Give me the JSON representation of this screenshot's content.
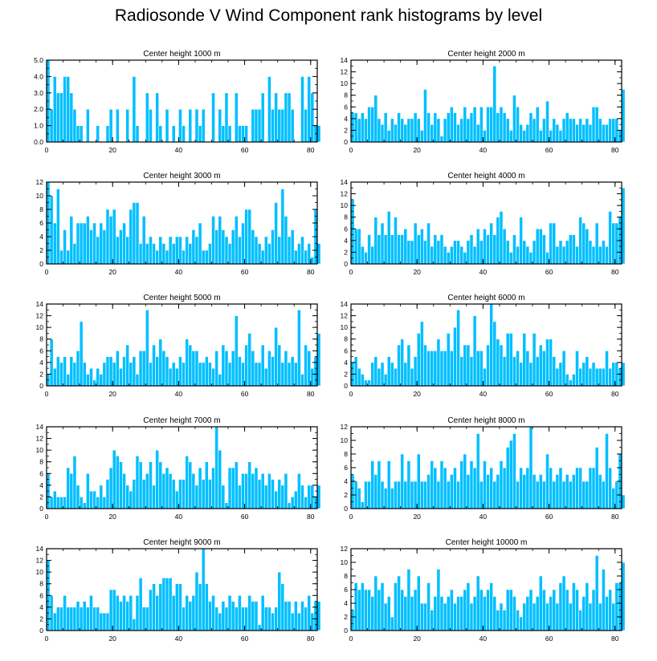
{
  "title": "Radiosonde V Wind Component rank histograms by level",
  "colors": {
    "bar": "#00BFFF",
    "frame": "#000000"
  },
  "chart_data": [
    {
      "type": "bar",
      "title": "Center height 1000 m",
      "x_start": 0,
      "xlim": [
        0,
        82
      ],
      "xticks": [
        0,
        20,
        40,
        60,
        80
      ],
      "ylim": [
        0,
        5
      ],
      "yticks": [
        0,
        1,
        2,
        3,
        4,
        5
      ],
      "yticklabels": [
        "0.0",
        "1.0",
        "2.0",
        "3.0",
        "4.0",
        "5.0"
      ],
      "values": [
        5,
        2,
        4,
        3,
        3,
        4,
        4,
        3,
        2,
        1,
        1,
        0,
        2,
        0,
        0,
        1,
        0,
        0,
        1,
        2,
        0,
        2,
        0,
        0,
        2,
        0,
        4,
        1,
        0,
        0,
        3,
        2,
        0,
        3,
        1,
        0,
        2,
        0,
        1,
        0,
        2,
        1,
        0,
        2,
        0,
        2,
        1,
        2,
        0,
        0,
        3,
        0,
        2,
        1,
        3,
        1,
        0,
        3,
        1,
        1,
        1,
        0,
        2,
        2,
        2,
        3,
        0,
        4,
        2,
        3,
        2,
        2,
        3,
        3,
        2,
        0,
        0,
        4,
        2,
        4,
        3,
        1,
        1
      ]
    },
    {
      "type": "bar",
      "title": "Center height 2000 m",
      "x_start": 0,
      "xlim": [
        0,
        82
      ],
      "xticks": [
        0,
        20,
        40,
        60,
        80
      ],
      "ylim": [
        0,
        14
      ],
      "yticks": [
        0,
        2,
        4,
        6,
        8,
        10,
        12,
        14
      ],
      "yticklabels": [
        "0",
        "2",
        "4",
        "6",
        "8",
        "10",
        "12",
        "14"
      ],
      "values": [
        5,
        5,
        4,
        5,
        4,
        6,
        6,
        8,
        4,
        3,
        5,
        2,
        4,
        3,
        5,
        4,
        3,
        4,
        4,
        5,
        4,
        2,
        9,
        5,
        3,
        5,
        4,
        1,
        4,
        5,
        6,
        5,
        3,
        4,
        6,
        4,
        5,
        6,
        3,
        6,
        2,
        6,
        6,
        13,
        5,
        6,
        5,
        4,
        2,
        8,
        6,
        3,
        2,
        3,
        5,
        4,
        6,
        2,
        4,
        7,
        2,
        4,
        3,
        2,
        4,
        5,
        4,
        4,
        3,
        4,
        3,
        4,
        3,
        6,
        6,
        4,
        3,
        3,
        4,
        4,
        4,
        2,
        9
      ]
    },
    {
      "type": "bar",
      "title": "Center height 3000 m",
      "x_start": 0,
      "xlim": [
        0,
        82
      ],
      "xticks": [
        0,
        20,
        40,
        60,
        80
      ],
      "ylim": [
        0,
        12
      ],
      "yticks": [
        0,
        2,
        4,
        6,
        8,
        10,
        12
      ],
      "yticklabels": [
        "0",
        "2",
        "4",
        "6",
        "8",
        "10",
        "12"
      ],
      "values": [
        12,
        10,
        6,
        11,
        2,
        5,
        2,
        7,
        3,
        6,
        6,
        6,
        7,
        5,
        6,
        4,
        6,
        5,
        8,
        7,
        8,
        4,
        5,
        6,
        4,
        8,
        9,
        9,
        3,
        7,
        3,
        4,
        3,
        2,
        4,
        3,
        2,
        4,
        3,
        4,
        4,
        2,
        4,
        3,
        5,
        4,
        6,
        2,
        2,
        3,
        7,
        5,
        7,
        5,
        4,
        3,
        5,
        7,
        4,
        6,
        8,
        8,
        5,
        4,
        3,
        2,
        4,
        3,
        5,
        9,
        4,
        11,
        7,
        4,
        5,
        2,
        3,
        4,
        2,
        3,
        1,
        8,
        3
      ]
    },
    {
      "type": "bar",
      "title": "Center height 4000 m",
      "x_start": 0,
      "xlim": [
        0,
        82
      ],
      "xticks": [
        0,
        20,
        40,
        60,
        80
      ],
      "ylim": [
        0,
        14
      ],
      "yticks": [
        0,
        2,
        4,
        6,
        8,
        10,
        12,
        14
      ],
      "yticklabels": [
        "0",
        "2",
        "4",
        "6",
        "8",
        "10",
        "12",
        "14"
      ],
      "values": [
        11,
        6,
        6,
        3,
        2,
        5,
        3,
        8,
        5,
        7,
        5,
        9,
        5,
        8,
        5,
        5,
        6,
        4,
        4,
        7,
        5,
        6,
        4,
        7,
        3,
        5,
        4,
        5,
        3,
        2,
        3,
        4,
        4,
        3,
        2,
        4,
        5,
        3,
        6,
        4,
        6,
        5,
        7,
        5,
        8,
        9,
        6,
        4,
        2,
        5,
        3,
        8,
        4,
        3,
        2,
        4,
        6,
        6,
        5,
        2,
        7,
        7,
        3,
        4,
        3,
        4,
        5,
        5,
        3,
        8,
        7,
        6,
        4,
        3,
        7,
        3,
        4,
        3,
        9,
        7,
        7,
        8,
        13
      ]
    },
    {
      "type": "bar",
      "title": "Center height 5000 m",
      "x_start": 0,
      "xlim": [
        0,
        82
      ],
      "xticks": [
        0,
        20,
        40,
        60,
        80
      ],
      "ylim": [
        0,
        14
      ],
      "yticks": [
        0,
        2,
        4,
        6,
        8,
        10,
        12,
        14
      ],
      "yticklabels": [
        "0",
        "2",
        "4",
        "6",
        "8",
        "10",
        "12",
        "14"
      ],
      "values": [
        2,
        8,
        3,
        5,
        4,
        5,
        2,
        5,
        4,
        6,
        11,
        4,
        2,
        3,
        1,
        3,
        2,
        4,
        5,
        5,
        4,
        6,
        3,
        5,
        7,
        4,
        5,
        2,
        6,
        6,
        13,
        4,
        7,
        5,
        8,
        6,
        5,
        3,
        4,
        3,
        5,
        4,
        8,
        7,
        6,
        6,
        4,
        4,
        5,
        4,
        3,
        6,
        2,
        7,
        6,
        4,
        6,
        12,
        5,
        4,
        7,
        9,
        6,
        4,
        4,
        7,
        3,
        6,
        5,
        10,
        7,
        4,
        6,
        4,
        5,
        4,
        13,
        2,
        7,
        6,
        3,
        5,
        9
      ]
    },
    {
      "type": "bar",
      "title": "Center height 6000 m",
      "x_start": 0,
      "xlim": [
        0,
        82
      ],
      "xticks": [
        0,
        20,
        40,
        60,
        80
      ],
      "ylim": [
        0,
        14
      ],
      "yticks": [
        0,
        2,
        4,
        6,
        8,
        10,
        12,
        14
      ],
      "yticklabels": [
        "0",
        "2",
        "4",
        "6",
        "8",
        "10",
        "12",
        "14"
      ],
      "values": [
        4,
        5,
        3,
        2,
        1,
        1,
        4,
        5,
        3,
        4,
        2,
        5,
        4,
        3,
        7,
        8,
        4,
        7,
        3,
        5,
        9,
        11,
        7,
        6,
        6,
        6,
        8,
        6,
        6,
        9,
        6,
        10,
        13,
        5,
        7,
        7,
        5,
        12,
        6,
        6,
        3,
        7,
        14,
        11,
        8,
        7,
        5,
        9,
        9,
        5,
        6,
        4,
        9,
        6,
        4,
        9,
        5,
        7,
        6,
        8,
        8,
        5,
        3,
        4,
        6,
        2,
        1,
        2,
        6,
        3,
        4,
        5,
        3,
        4,
        3,
        3,
        3,
        6,
        3,
        4,
        4,
        3,
        4
      ]
    },
    {
      "type": "bar",
      "title": "Center height 7000 m",
      "x_start": 0,
      "xlim": [
        0,
        82
      ],
      "xticks": [
        0,
        20,
        40,
        60,
        80
      ],
      "ylim": [
        0,
        14
      ],
      "yticks": [
        0,
        2,
        4,
        6,
        8,
        10,
        12,
        14
      ],
      "yticklabels": [
        "0",
        "2",
        "4",
        "6",
        "8",
        "10",
        "12",
        "14"
      ],
      "values": [
        6,
        2,
        3,
        2,
        2,
        2,
        7,
        6,
        9,
        4,
        2,
        1,
        6,
        3,
        3,
        2,
        4,
        2,
        5,
        7,
        10,
        9,
        8,
        6,
        4,
        3,
        5,
        9,
        8,
        5,
        6,
        8,
        4,
        10,
        8,
        6,
        7,
        6,
        5,
        3,
        5,
        5,
        9,
        8,
        6,
        4,
        7,
        5,
        8,
        5,
        7,
        14,
        10,
        4,
        1,
        7,
        7,
        8,
        4,
        6,
        6,
        8,
        6,
        7,
        5,
        6,
        4,
        6,
        5,
        3,
        5,
        4,
        6,
        1,
        2,
        3,
        6,
        4,
        2,
        4,
        4,
        2,
        4
      ]
    },
    {
      "type": "bar",
      "title": "Center height 8000 m",
      "x_start": 0,
      "xlim": [
        0,
        82
      ],
      "xticks": [
        0,
        20,
        40,
        60,
        80
      ],
      "ylim": [
        0,
        12
      ],
      "yticks": [
        0,
        2,
        4,
        6,
        8,
        10,
        12
      ],
      "yticklabels": [
        "0",
        "2",
        "4",
        "6",
        "8",
        "10",
        "12"
      ],
      "values": [
        5,
        4,
        3,
        1,
        4,
        4,
        7,
        5,
        7,
        4,
        3,
        7,
        3,
        4,
        4,
        8,
        4,
        7,
        4,
        4,
        8,
        4,
        4,
        5,
        7,
        6,
        4,
        7,
        6,
        4,
        5,
        6,
        4,
        7,
        8,
        5,
        7,
        6,
        11,
        4,
        7,
        5,
        6,
        4,
        5,
        7,
        6,
        9,
        10,
        11,
        4,
        6,
        5,
        6,
        12,
        5,
        4,
        5,
        4,
        8,
        6,
        4,
        5,
        6,
        4,
        5,
        4,
        5,
        6,
        6,
        4,
        4,
        6,
        6,
        9,
        5,
        4,
        11,
        6,
        3,
        4,
        8,
        2
      ]
    },
    {
      "type": "bar",
      "title": "Center height 9000 m",
      "x_start": 0,
      "xlim": [
        0,
        82
      ],
      "xticks": [
        0,
        20,
        40,
        60,
        80
      ],
      "ylim": [
        0,
        14
      ],
      "yticks": [
        0,
        2,
        4,
        6,
        8,
        10,
        12,
        14
      ],
      "yticklabels": [
        "0",
        "2",
        "4",
        "6",
        "8",
        "10",
        "12",
        "14"
      ],
      "values": [
        12,
        6,
        3,
        4,
        4,
        6,
        4,
        4,
        4,
        5,
        4,
        5,
        4,
        6,
        4,
        4,
        3,
        3,
        3,
        7,
        7,
        6,
        5,
        6,
        5,
        6,
        2,
        6,
        9,
        4,
        4,
        7,
        8,
        6,
        8,
        9,
        9,
        9,
        6,
        8,
        8,
        4,
        6,
        5,
        6,
        10,
        8,
        14,
        8,
        5,
        6,
        4,
        3,
        5,
        4,
        6,
        5,
        4,
        6,
        4,
        4,
        6,
        5,
        5,
        1,
        6,
        4,
        4,
        3,
        4,
        10,
        8,
        5,
        5,
        3,
        5,
        3,
        5,
        4,
        6,
        3,
        5,
        5
      ]
    },
    {
      "type": "bar",
      "title": "Center height 10000 m",
      "x_start": 0,
      "xlim": [
        0,
        82
      ],
      "xticks": [
        0,
        20,
        40,
        60,
        80
      ],
      "ylim": [
        0,
        12
      ],
      "yticks": [
        0,
        2,
        4,
        6,
        8,
        10,
        12
      ],
      "yticklabels": [
        "0",
        "2",
        "4",
        "6",
        "8",
        "10",
        "12"
      ],
      "values": [
        3,
        7,
        6,
        7,
        6,
        6,
        5,
        8,
        6,
        7,
        4,
        5,
        2,
        7,
        8,
        6,
        5,
        9,
        5,
        6,
        8,
        4,
        4,
        7,
        3,
        5,
        9,
        5,
        4,
        5,
        6,
        4,
        5,
        5,
        6,
        7,
        4,
        5,
        8,
        6,
        5,
        6,
        7,
        5,
        3,
        4,
        3,
        6,
        6,
        5,
        3,
        2,
        4,
        5,
        6,
        4,
        5,
        8,
        6,
        4,
        5,
        6,
        4,
        7,
        8,
        6,
        4,
        7,
        6,
        3,
        5,
        7,
        4,
        6,
        11,
        4,
        9,
        5,
        6,
        4,
        7,
        7,
        10
      ]
    }
  ]
}
